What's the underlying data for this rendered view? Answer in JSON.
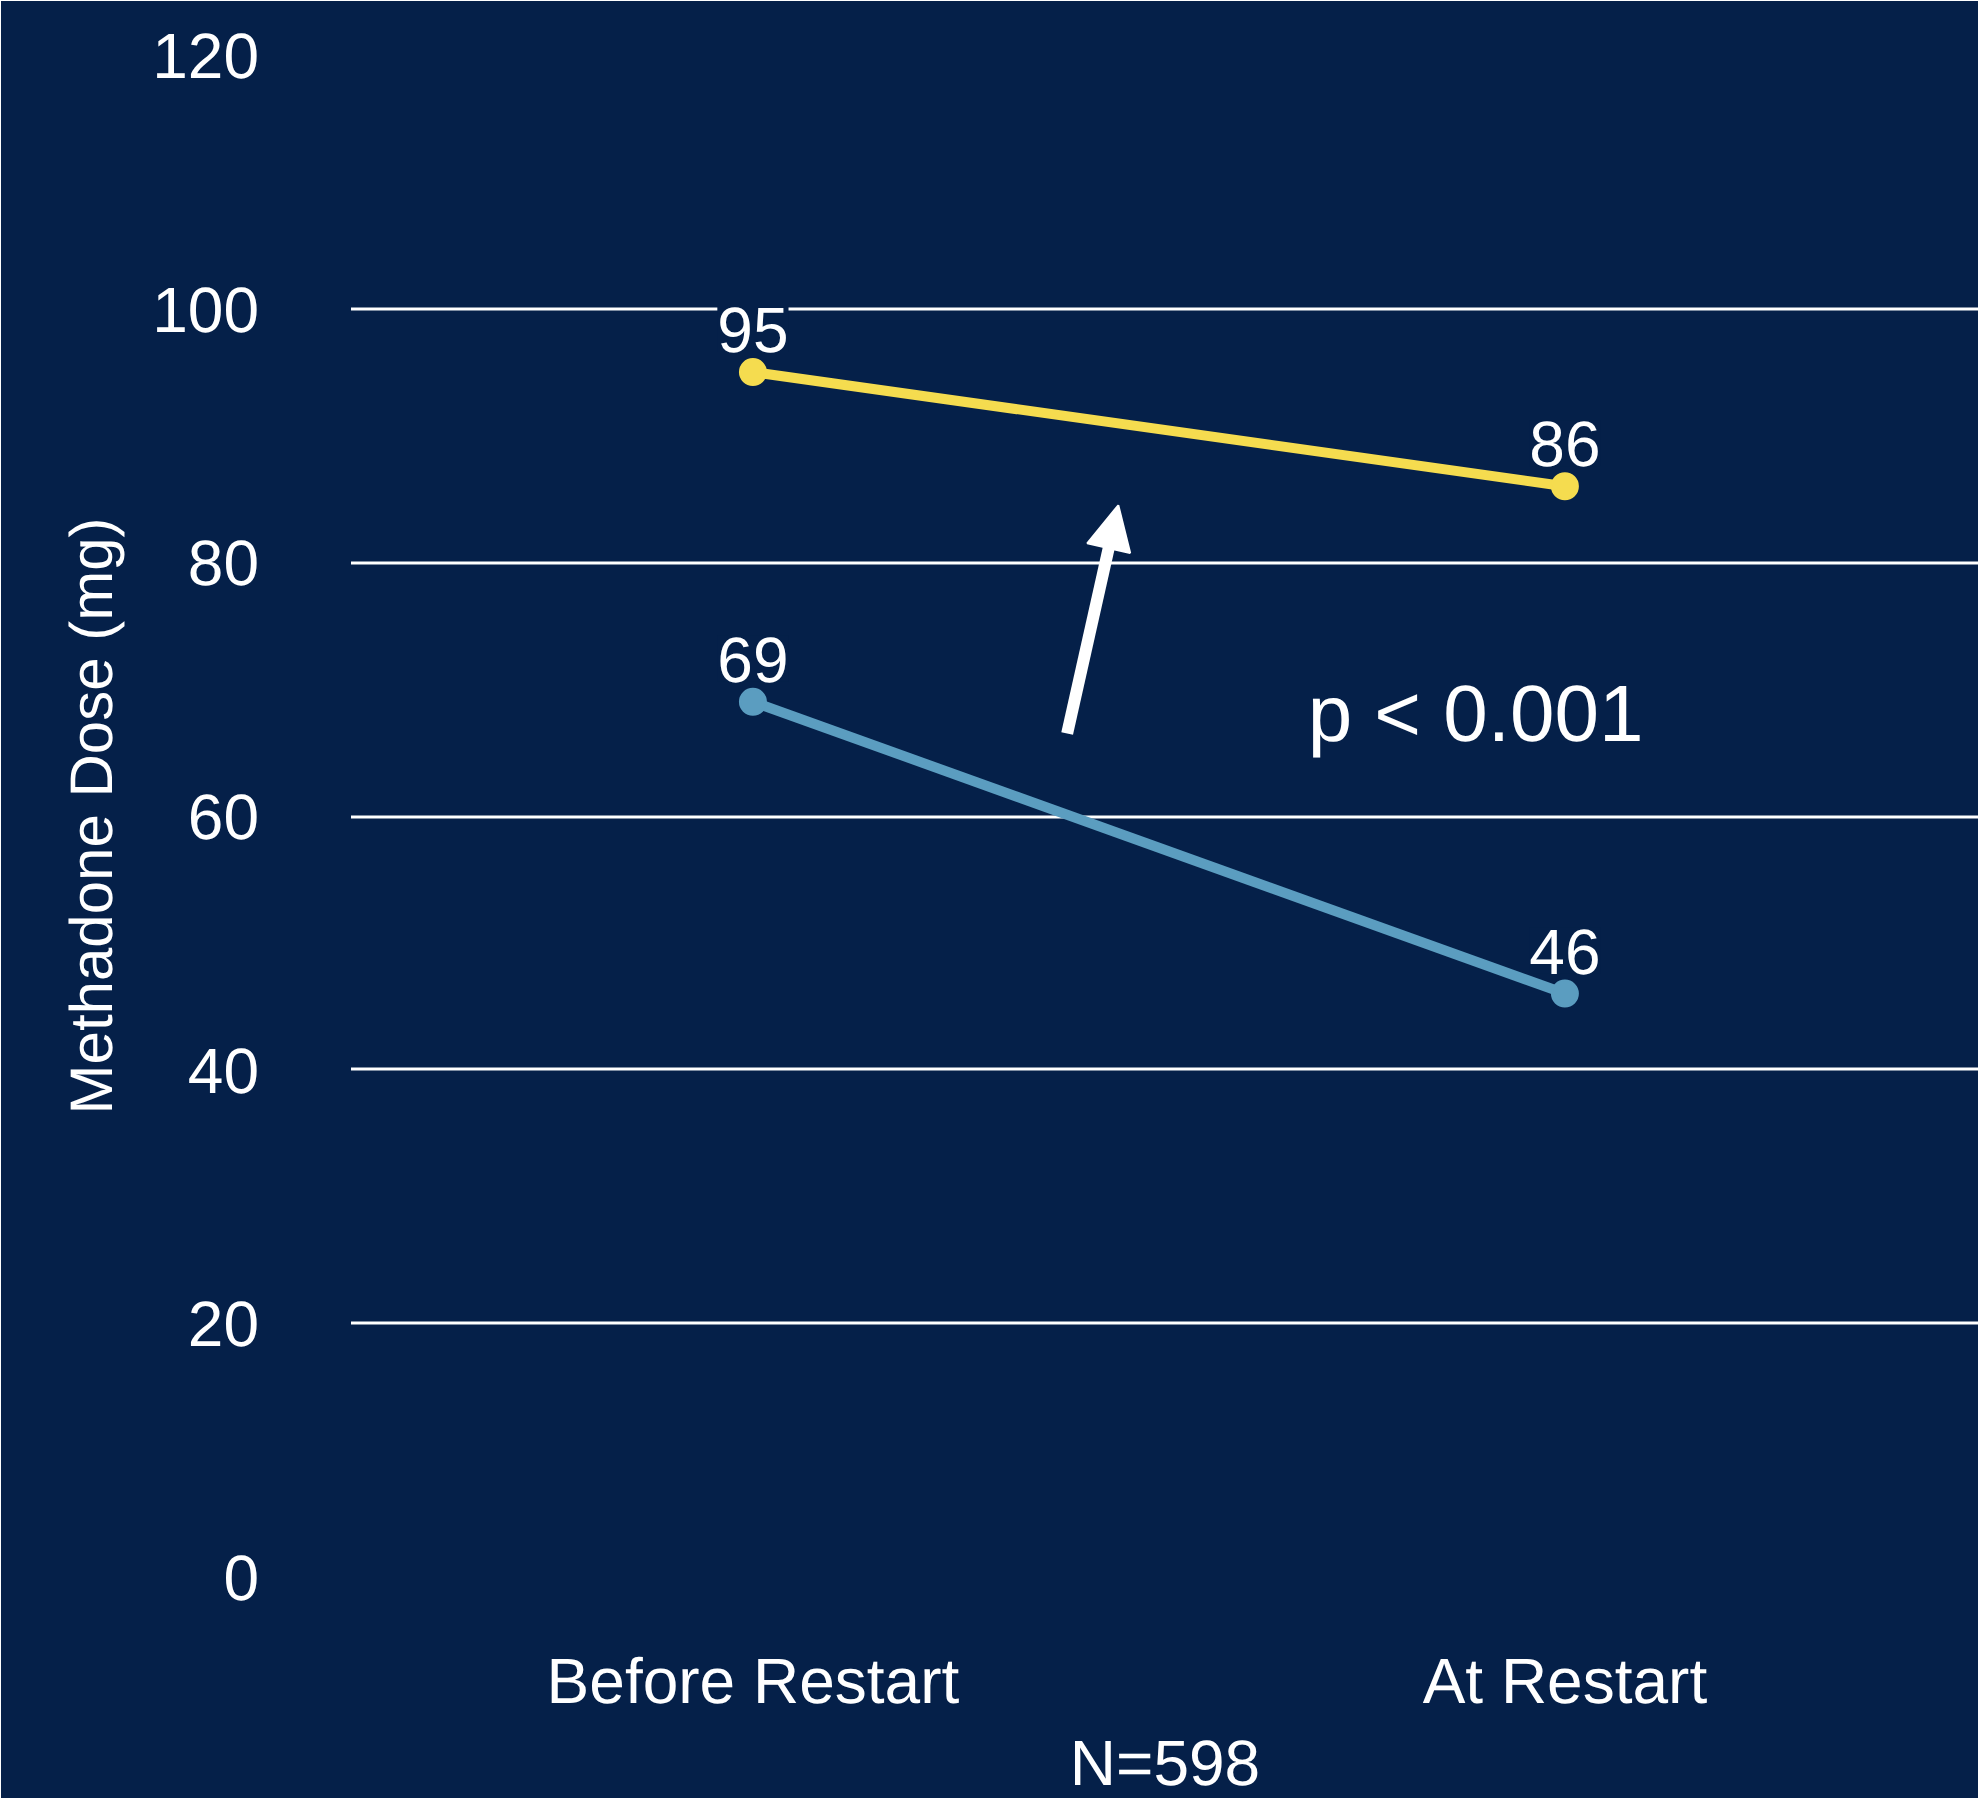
{
  "chart_data": {
    "type": "line",
    "ylabel": "Methadone Dose (mg)",
    "categories": [
      "Before Restart",
      "At Restart"
    ],
    "series": [
      {
        "color": "#f5dc4f",
        "values": [
          95,
          86
        ]
      },
      {
        "color": "#5b9dc0",
        "values": [
          69,
          46
        ]
      }
    ],
    "ylim": [
      0,
      120
    ],
    "yticks": [
      0,
      20,
      40,
      60,
      80,
      100,
      120
    ],
    "grid": "y",
    "marker": "circle",
    "data_labels": true,
    "annotations": [
      "p < 0.001",
      "N=598"
    ]
  }
}
